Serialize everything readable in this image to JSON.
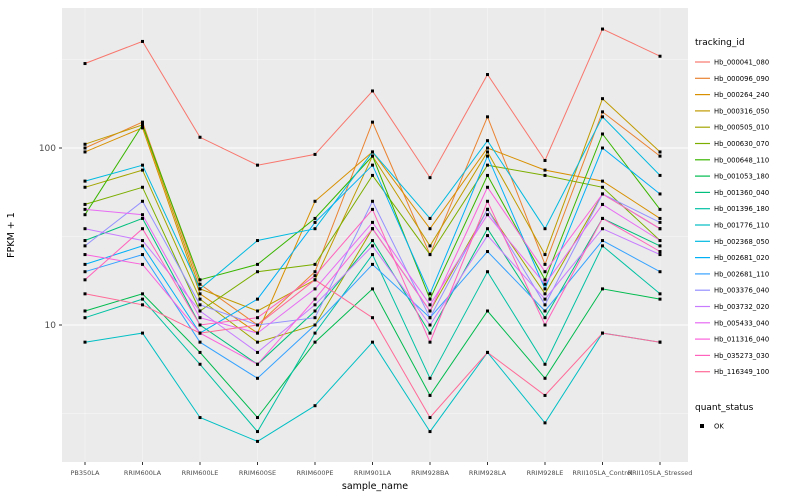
{
  "figure": {
    "background": "#FFFFFF",
    "panel_background": "#EBEBEB",
    "grid_color": "#FFFFFF",
    "point_color": "#000000",
    "text_color": "#000000",
    "tick_text_color": "#4D4D4D"
  },
  "legend": {
    "tracking_title": "tracking_id",
    "quant_title": "quant_status",
    "quant_items": [
      {
        "label": "OK"
      }
    ]
  },
  "chart_data": {
    "type": "line",
    "title": "",
    "xlabel": "sample_name",
    "ylabel": "FPKM + 1",
    "y_scale": "log10",
    "y_ticks": [
      10,
      100
    ],
    "ylim": [
      1.7,
      620
    ],
    "grid": true,
    "legend_position": "right",
    "categories": [
      "PB350LA",
      "RRIM600LA",
      "RRIM600LE",
      "RRIM600SE",
      "RRIM600PE",
      "RRIM901LA",
      "RRIM928BA",
      "RRIM928LA",
      "RRIM928LE",
      "RRII105LA_Control",
      "RRII105LA_Stressed"
    ],
    "series": [
      {
        "name": "Hb_000041_080",
        "color": "#F8766D",
        "values": [
          300,
          400,
          115,
          80,
          92,
          210,
          68,
          260,
          85,
          470,
          330
        ]
      },
      {
        "name": "Hb_000096_090",
        "color": "#EA8331",
        "values": [
          100,
          140,
          17,
          10,
          20,
          140,
          25,
          150,
          22,
          160,
          90
        ]
      },
      {
        "name": "Hb_000264_240",
        "color": "#D89000",
        "values": [
          95,
          130,
          15,
          9,
          50,
          95,
          35,
          100,
          75,
          65,
          40
        ]
      },
      {
        "name": "Hb_000316_050",
        "color": "#C09B00",
        "values": [
          105,
          135,
          16,
          12,
          18,
          90,
          28,
          95,
          25,
          190,
          95
        ]
      },
      {
        "name": "Hb_000505_010",
        "color": "#A3A500",
        "values": [
          60,
          75,
          14,
          8,
          10,
          35,
          12,
          45,
          15,
          55,
          35
        ]
      },
      {
        "name": "Hb_000630_070",
        "color": "#7CAE00",
        "values": [
          48,
          60,
          12,
          20,
          22,
          70,
          25,
          80,
          70,
          60,
          30
        ]
      },
      {
        "name": "Hb_000648_110",
        "color": "#39B600",
        "values": [
          42,
          135,
          18,
          22,
          40,
          90,
          14,
          70,
          18,
          120,
          45
        ]
      },
      {
        "name": "Hb_001053_180",
        "color": "#00BB4E",
        "values": [
          12,
          15,
          7,
          3,
          8,
          16,
          4,
          12,
          5,
          16,
          14
        ]
      },
      {
        "name": "Hb_001360_040",
        "color": "#00BF7D",
        "values": [
          30,
          40,
          10,
          6,
          12,
          30,
          9,
          35,
          11,
          40,
          28
        ]
      },
      {
        "name": "Hb_001396_180",
        "color": "#00C1A3",
        "values": [
          11,
          14,
          6,
          2.5,
          9,
          25,
          5,
          20,
          6,
          28,
          15
        ]
      },
      {
        "name": "Hb_001776_110",
        "color": "#00BFC4",
        "values": [
          8,
          9,
          3,
          2.2,
          3.5,
          8,
          2.5,
          7,
          2.8,
          9,
          8
        ]
      },
      {
        "name": "Hb_002368_050",
        "color": "#00BAE0",
        "values": [
          65,
          80,
          16,
          30,
          35,
          95,
          40,
          110,
          35,
          150,
          70
        ]
      },
      {
        "name": "Hb_002681_020",
        "color": "#00B0F6",
        "values": [
          22,
          28,
          9,
          14,
          38,
          80,
          15,
          90,
          16,
          100,
          55
        ]
      },
      {
        "name": "Hb_002681_110",
        "color": "#35A2FF",
        "values": [
          20,
          25,
          8,
          5,
          10,
          22,
          11,
          26,
          12,
          30,
          20
        ]
      },
      {
        "name": "Hb_003376_040",
        "color": "#9590FF",
        "values": [
          28,
          50,
          13,
          10,
          11,
          50,
          11,
          45,
          13,
          55,
          38
        ]
      },
      {
        "name": "Hb_003732_020",
        "color": "#C77CFF",
        "values": [
          35,
          30,
          12,
          7,
          13,
          28,
          10,
          32,
          14,
          35,
          25
        ]
      },
      {
        "name": "Hb_005433_040",
        "color": "#E76BF3",
        "values": [
          45,
          42,
          11,
          9,
          16,
          38,
          13,
          42,
          17,
          48,
          30
        ]
      },
      {
        "name": "Hb_011316_040",
        "color": "#FA62DB",
        "values": [
          25,
          22,
          9,
          6,
          14,
          35,
          12,
          60,
          20,
          55,
          35
        ]
      },
      {
        "name": "Hb_035273_030",
        "color": "#FF62BC",
        "values": [
          18,
          35,
          10,
          11,
          19,
          45,
          8,
          50,
          10,
          40,
          26
        ]
      },
      {
        "name": "Hb_116349_100",
        "color": "#FF6A98",
        "values": [
          15,
          13,
          9,
          10,
          18,
          11,
          3,
          7,
          4,
          9,
          8
        ]
      }
    ]
  }
}
